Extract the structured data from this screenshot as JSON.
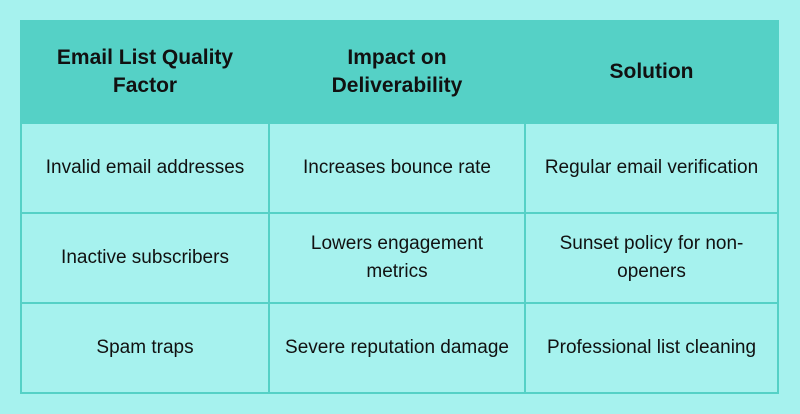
{
  "table": {
    "headers": [
      "Email List Quality Factor",
      "Impact on Deliverability",
      "Solution"
    ],
    "rows": [
      [
        "Invalid email addresses",
        "Increases bounce rate",
        "Regular email verification"
      ],
      [
        "Inactive subscribers",
        "Lowers engagement metrics",
        "Sunset policy for non-openers"
      ],
      [
        "Spam traps",
        "Severe reputation damage",
        "Professional list cleaning"
      ]
    ]
  },
  "colors": {
    "background": "#a6f2ee",
    "header_background": "#55d1c6",
    "border": "#55d1c6",
    "text": "#111111"
  }
}
